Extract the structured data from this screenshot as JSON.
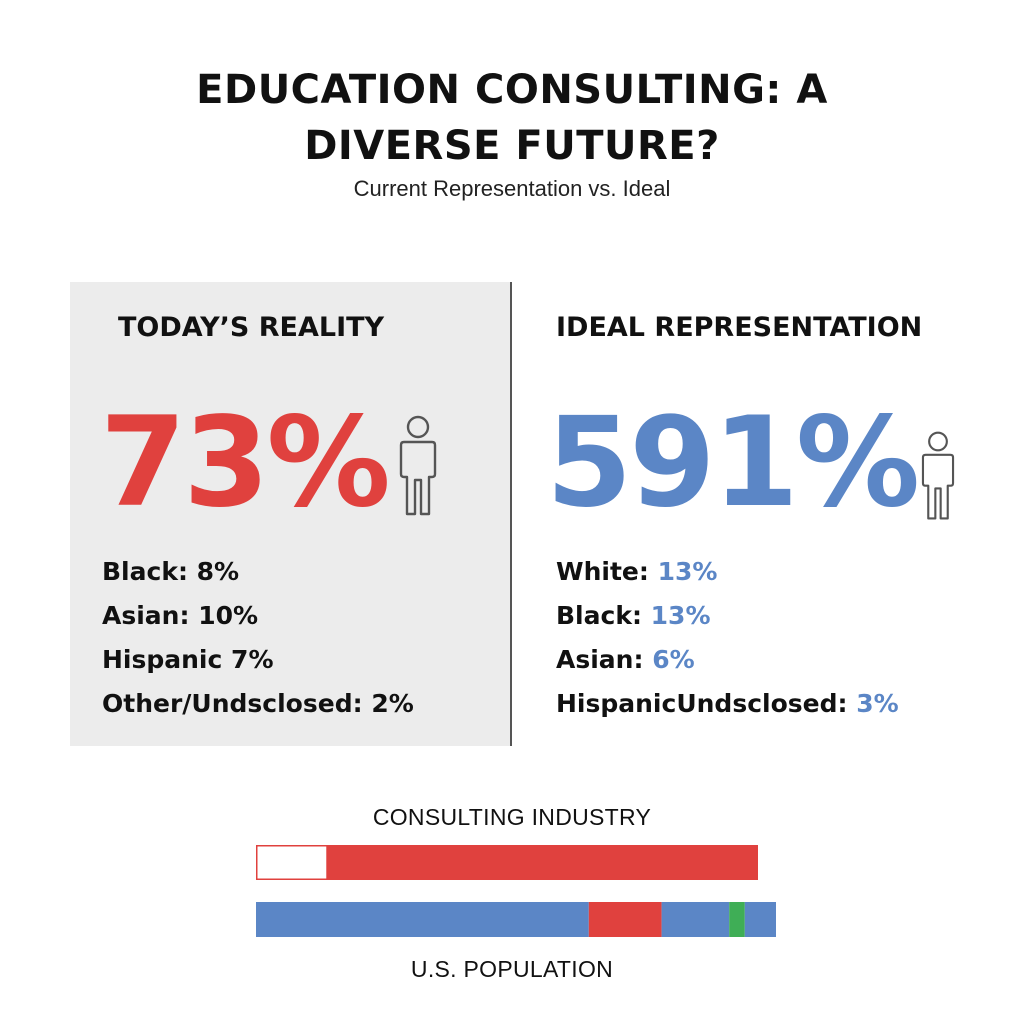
{
  "header": {
    "title_line1": "EDUCATION CONSULTING: A",
    "title_line2": "DIVERSE FUTURE?",
    "subtitle": "Current Representation vs. Ideal"
  },
  "left_panel": {
    "heading": "TODAY’S REALITY",
    "big_value": "73%",
    "stats": [
      {
        "label": "Black:",
        "value": "8%"
      },
      {
        "label": "Asian:",
        "value": "10%"
      },
      {
        "label": "Hispanic",
        "value": "7%"
      },
      {
        "label": "Other/Undsclosed:",
        "value": "2%"
      }
    ]
  },
  "right_panel": {
    "heading": "IDEAL REPRESENTATION",
    "big_value": "591%",
    "stats": [
      {
        "label": "White:",
        "value": "13%"
      },
      {
        "label": "Black:",
        "value": "13%"
      },
      {
        "label": "Asian:",
        "value": "6%"
      },
      {
        "label": "HispanicUndsclosed:",
        "value": "3%"
      }
    ]
  },
  "colors": {
    "red": "#e0413e",
    "blue": "#5b86c6",
    "green": "#3fae56",
    "white": "#ffffff"
  },
  "icons": [
    "person-outline-icon",
    "person-outline-icon"
  ],
  "chart_data": {
    "type": "bar",
    "orientation": "horizontal-stacked",
    "bars": [
      {
        "label": "CONSULTING INDUSTRY",
        "segments": [
          {
            "color": "#ffffff",
            "value": 14
          },
          {
            "color": "#e0413e",
            "value": 86
          }
        ]
      },
      {
        "label": "U.S. POPULATION",
        "segments": [
          {
            "color": "#5b86c6",
            "value": 64
          },
          {
            "color": "#e0413e",
            "value": 14
          },
          {
            "color": "#5b86c6",
            "value": 13
          },
          {
            "color": "#3fae56",
            "value": 3
          },
          {
            "color": "#5b86c6",
            "value": 6
          }
        ]
      }
    ]
  }
}
